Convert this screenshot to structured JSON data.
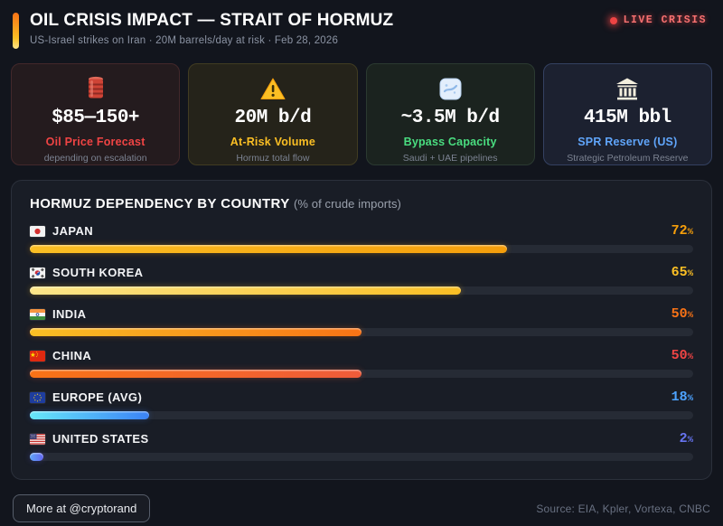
{
  "header": {
    "title": "OIL CRISIS IMPACT — STRAIT OF HORMUZ",
    "subtitle": "US-Israel strikes on Iran · 20M barrels/day at risk · Feb 28, 2026",
    "live_badge": "LIVE CRISIS",
    "live_color": "#f87171"
  },
  "stats": {
    "cards": [
      {
        "icon": "oil-barrel-icon",
        "value": "$85—150+",
        "label": "Oil Price Forecast",
        "sublabel": "depending on escalation",
        "accent": "#ef4444",
        "bg": "#241b1e",
        "border": "#43282b"
      },
      {
        "icon": "warning-triangle-icon",
        "value": "20M b/d",
        "label": "At-Risk Volume",
        "sublabel": "Hormuz total flow",
        "accent": "#fbbf24",
        "bg": "#25231a",
        "border": "#413c22"
      },
      {
        "icon": "pipeline-icon",
        "value": "~3.5M b/d",
        "label": "Bypass Capacity",
        "sublabel": "Saudi + UAE pipelines",
        "accent": "#4ade80",
        "bg": "#1b231f",
        "border": "#2b3a31"
      },
      {
        "icon": "bank-icon",
        "value": "415M bbl",
        "label": "SPR Reserve (US)",
        "sublabel": "Strategic Petroleum Reserve",
        "accent": "#60a5fa",
        "bg": "#1c2130",
        "border": "#344161"
      }
    ]
  },
  "chart": {
    "title": "HORMUZ DEPENDENCY BY COUNTRY",
    "subtitle": "(% of crude imports)"
  },
  "chart_data": {
    "type": "bar",
    "orientation": "horizontal",
    "title": "HORMUZ DEPENDENCY BY COUNTRY (% of crude imports)",
    "unit": "%",
    "xlim": [
      0,
      100
    ],
    "grid": false,
    "categories": [
      "JAPAN",
      "SOUTH KOREA",
      "INDIA",
      "CHINA",
      "EUROPE (AVG)",
      "UNITED STATES"
    ],
    "values": [
      72,
      65,
      50,
      50,
      18,
      2
    ],
    "rows": [
      {
        "country": "JAPAN",
        "flag": "flag-japan",
        "value": 72,
        "value_color": "#f59e0b",
        "bar_from": "#fbbf24",
        "bar_to": "#f59e0b"
      },
      {
        "country": "SOUTH KOREA",
        "flag": "flag-south-korea",
        "value": 65,
        "value_color": "#fbbf24",
        "bar_from": "#fde68a",
        "bar_to": "#fbbf24"
      },
      {
        "country": "INDIA",
        "flag": "flag-india",
        "value": 50,
        "value_color": "#f97316",
        "bar_from": "#fbbf24",
        "bar_to": "#f97316"
      },
      {
        "country": "CHINA",
        "flag": "flag-china",
        "value": 50,
        "value_color": "#ef4444",
        "bar_from": "#f97316",
        "bar_to": "#ef5b3a"
      },
      {
        "country": "EUROPE (AVG)",
        "flag": "flag-europe",
        "value": 18,
        "value_color": "#4da3ff",
        "bar_from": "#67e8f9",
        "bar_to": "#3b82f6"
      },
      {
        "country": "UNITED STATES",
        "flag": "flag-united-states",
        "value": 2,
        "value_color": "#6674f0",
        "bar_from": "#60a5fa",
        "bar_to": "#6366f1"
      }
    ]
  },
  "footer": {
    "cta": "More at @cryptorand",
    "source": "Source: EIA, Kpler, Vortexa, CNBC"
  }
}
